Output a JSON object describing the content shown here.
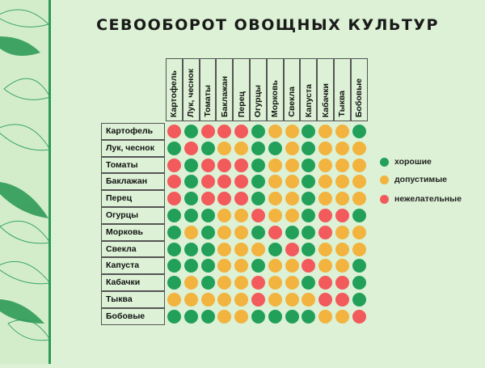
{
  "title": "СЕВООБОРОТ ОВОЩНЫХ КУЛЬТУР",
  "colors": {
    "good": "#22a05a",
    "ok": "#f2b33f",
    "bad": "#f25a5c",
    "accent": "#2a9a55"
  },
  "chart_data": {
    "type": "heatmap",
    "columns": [
      "Картофель",
      "Лук, чеснок",
      "Томаты",
      "Баклажан",
      "Перец",
      "Огурцы",
      "Морковь",
      "Свекла",
      "Капуста",
      "Кабачки",
      "Тыква",
      "Бобовые"
    ],
    "rows": [
      "Картофель",
      "Лук, чеснок",
      "Томаты",
      "Баклажан",
      "Перец",
      "Огурцы",
      "Морковь",
      "Свекла",
      "Капуста",
      "Кабачки",
      "Тыква",
      "Бобовые"
    ],
    "legend": [
      {
        "key": "good",
        "label": "хорошие"
      },
      {
        "key": "ok",
        "label": "допустимые"
      },
      {
        "key": "bad",
        "label": "нежелательные"
      }
    ],
    "legend_position": "right",
    "values": [
      [
        "bad",
        "good",
        "bad",
        "bad",
        "bad",
        "good",
        "ok",
        "ok",
        "good",
        "ok",
        "ok",
        "good"
      ],
      [
        "good",
        "bad",
        "good",
        "ok",
        "ok",
        "good",
        "good",
        "ok",
        "good",
        "ok",
        "ok",
        "ok"
      ],
      [
        "bad",
        "good",
        "bad",
        "bad",
        "bad",
        "good",
        "ok",
        "ok",
        "good",
        "ok",
        "ok",
        "ok"
      ],
      [
        "bad",
        "good",
        "bad",
        "bad",
        "bad",
        "good",
        "ok",
        "ok",
        "good",
        "ok",
        "ok",
        "ok"
      ],
      [
        "bad",
        "good",
        "bad",
        "bad",
        "bad",
        "good",
        "ok",
        "ok",
        "good",
        "ok",
        "ok",
        "ok"
      ],
      [
        "good",
        "good",
        "good",
        "ok",
        "ok",
        "bad",
        "ok",
        "ok",
        "good",
        "bad",
        "bad",
        "good"
      ],
      [
        "good",
        "ok",
        "good",
        "ok",
        "ok",
        "good",
        "bad",
        "good",
        "good",
        "bad",
        "ok",
        "ok"
      ],
      [
        "good",
        "good",
        "good",
        "ok",
        "ok",
        "ok",
        "good",
        "bad",
        "good",
        "ok",
        "ok",
        "ok"
      ],
      [
        "good",
        "good",
        "good",
        "ok",
        "ok",
        "good",
        "ok",
        "ok",
        "bad",
        "ok",
        "ok",
        "good"
      ],
      [
        "good",
        "ok",
        "good",
        "ok",
        "ok",
        "bad",
        "ok",
        "ok",
        "good",
        "bad",
        "bad",
        "good"
      ],
      [
        "ok",
        "ok",
        "ok",
        "ok",
        "ok",
        "bad",
        "ok",
        "ok",
        "ok",
        "bad",
        "bad",
        "good"
      ],
      [
        "good",
        "good",
        "good",
        "ok",
        "ok",
        "good",
        "good",
        "good",
        "good",
        "ok",
        "ok",
        "bad"
      ]
    ]
  }
}
